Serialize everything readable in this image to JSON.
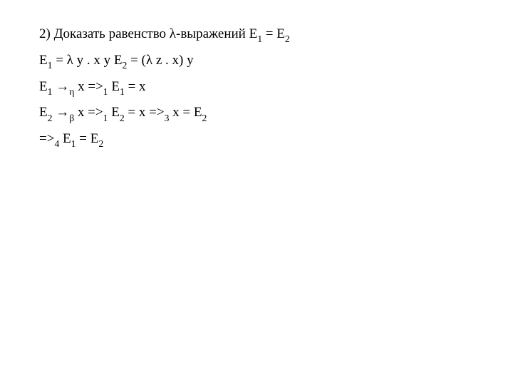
{
  "font": {
    "family": "Times New Roman",
    "size_pt": 19,
    "sub_scale": 0.72,
    "color": "#000000"
  },
  "background_color": "#ffffff",
  "lines": {
    "l1": {
      "t1": "2) Доказать равенство λ-выражений E",
      "s1": "1",
      "t2": " = E",
      "s2": "2"
    },
    "l2": {
      "t1": "E",
      "s1": "1",
      "t2": " =  λ y . x y   E",
      "s2": "2",
      "t3": " = (λ z . x) y"
    },
    "l3": {
      "t1": "E",
      "s1": "1",
      "t2": " →",
      "s2": "η",
      "t3": " x =>",
      "s3": "1",
      "t4": " E",
      "s4": "1",
      "t5": " =  x"
    },
    "l4": {
      "t1": "E",
      "s1": "2",
      "t2": " →",
      "s2": "β",
      "t3": " x =>",
      "s3": "1",
      "t4": " E",
      "s4": "2",
      "t5": " =  x =>",
      "s5": "3",
      "t6": " x = E",
      "s6": "2"
    },
    "l5": {
      "t1": "=>",
      "s1": "4",
      "t2": "  E",
      "s2": "1",
      "t3": "  =  E",
      "s3": "2"
    }
  }
}
